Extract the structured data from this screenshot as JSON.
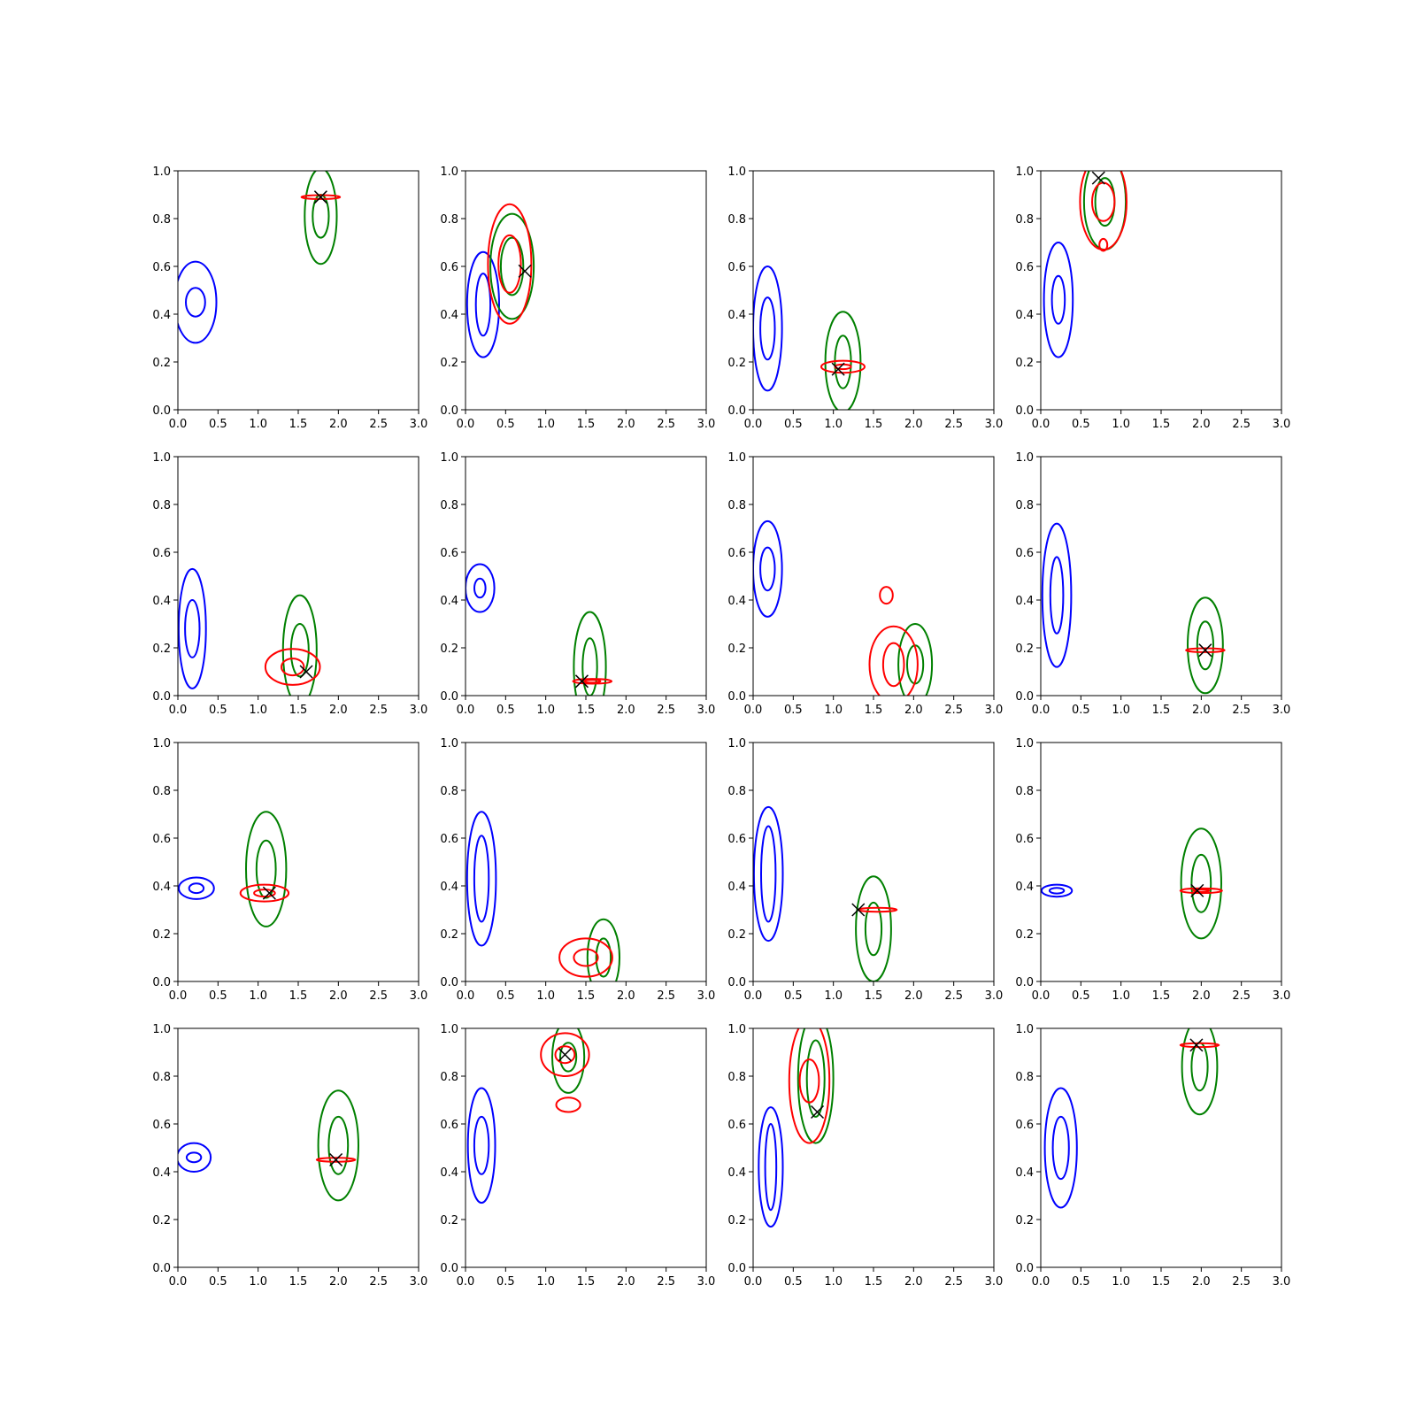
{
  "colors": {
    "blue": "#0000ff",
    "green": "#008000",
    "red": "#ff0000",
    "marker": "#000000"
  },
  "chart_data": {
    "type": "contour-grid",
    "grid": {
      "rows": 4,
      "cols": 4
    },
    "xlim": [
      0,
      3
    ],
    "ylim": [
      0,
      1
    ],
    "xticks": [
      "0.0",
      "0.5",
      "1.0",
      "1.5",
      "2.0",
      "2.5",
      "3.0"
    ],
    "yticks": [
      "0.0",
      "0.2",
      "0.4",
      "0.6",
      "0.8",
      "1.0"
    ],
    "panels": [
      {
        "marker": [
          1.78,
          0.89
        ],
        "blue": [
          {
            "cx": 0.22,
            "cy": 0.45,
            "levels": [
              [
                0.26,
                0.17
              ],
              [
                0.12,
                0.06
              ]
            ]
          }
        ],
        "green": [
          {
            "cx": 1.78,
            "cy": 0.81,
            "levels": [
              [
                0.2,
                0.2
              ],
              [
                0.1,
                0.09
              ]
            ]
          }
        ],
        "red": [
          {
            "cx": 1.78,
            "cy": 0.89,
            "levels": [
              [
                0.24,
                0.008
              ]
            ]
          }
        ]
      },
      {
        "marker": [
          0.74,
          0.58
        ],
        "blue": [
          {
            "cx": 0.22,
            "cy": 0.44,
            "levels": [
              [
                0.2,
                0.22
              ],
              [
                0.09,
                0.13
              ]
            ]
          }
        ],
        "green": [
          {
            "cx": 0.58,
            "cy": 0.6,
            "levels": [
              [
                0.27,
                0.22
              ],
              [
                0.14,
                0.12
              ]
            ]
          }
        ],
        "red": [
          {
            "cx": 0.55,
            "cy": 0.61,
            "levels": [
              [
                0.27,
                0.25
              ],
              [
                0.14,
                0.12
              ]
            ]
          }
        ]
      },
      {
        "marker": [
          1.06,
          0.17
        ],
        "blue": [
          {
            "cx": 0.18,
            "cy": 0.34,
            "levels": [
              [
                0.18,
                0.26
              ],
              [
                0.09,
                0.13
              ]
            ]
          }
        ],
        "green": [
          {
            "cx": 1.12,
            "cy": 0.2,
            "levels": [
              [
                0.22,
                0.21
              ],
              [
                0.1,
                0.11
              ]
            ]
          }
        ],
        "red": [
          {
            "cx": 1.12,
            "cy": 0.18,
            "levels": [
              [
                0.27,
                0.025
              ],
              [
                0.1,
                0.01
              ]
            ]
          }
        ]
      },
      {
        "marker": [
          0.72,
          0.97
        ],
        "blue": [
          {
            "cx": 0.22,
            "cy": 0.46,
            "levels": [
              [
                0.18,
                0.24
              ],
              [
                0.08,
                0.1
              ]
            ]
          }
        ],
        "green": [
          {
            "cx": 0.8,
            "cy": 0.87,
            "levels": [
              [
                0.26,
                0.2
              ],
              [
                0.12,
                0.1
              ]
            ]
          }
        ],
        "red": [
          {
            "cx": 0.78,
            "cy": 0.87,
            "levels": [
              [
                0.29,
                0.2
              ],
              [
                0.14,
                0.08
              ]
            ]
          },
          {
            "cx": 0.78,
            "cy": 0.69,
            "levels": [
              [
                0.05,
                0.025
              ]
            ]
          }
        ]
      },
      {
        "marker": [
          1.6,
          0.1
        ],
        "blue": [
          {
            "cx": 0.18,
            "cy": 0.28,
            "levels": [
              [
                0.17,
                0.25
              ],
              [
                0.09,
                0.12
              ]
            ]
          }
        ],
        "green": [
          {
            "cx": 1.52,
            "cy": 0.19,
            "levels": [
              [
                0.21,
                0.23
              ],
              [
                0.11,
                0.11
              ]
            ]
          }
        ],
        "red": [
          {
            "cx": 1.43,
            "cy": 0.12,
            "levels": [
              [
                0.34,
                0.075
              ],
              [
                0.14,
                0.035
              ]
            ]
          }
        ]
      },
      {
        "marker": [
          1.45,
          0.06
        ],
        "blue": [
          {
            "cx": 0.18,
            "cy": 0.45,
            "levels": [
              [
                0.18,
                0.1
              ],
              [
                0.07,
                0.04
              ]
            ]
          }
        ],
        "green": [
          {
            "cx": 1.55,
            "cy": 0.12,
            "levels": [
              [
                0.2,
                0.23
              ],
              [
                0.09,
                0.12
              ]
            ]
          }
        ],
        "red": [
          {
            "cx": 1.58,
            "cy": 0.06,
            "levels": [
              [
                0.24,
                0.01
              ],
              [
                0.1,
                0.006
              ]
            ]
          }
        ]
      },
      {
        "marker": null,
        "blue": [
          {
            "cx": 0.18,
            "cy": 0.53,
            "levels": [
              [
                0.18,
                0.2
              ],
              [
                0.09,
                0.09
              ]
            ]
          }
        ],
        "green": [
          {
            "cx": 2.02,
            "cy": 0.13,
            "levels": [
              [
                0.21,
                0.17
              ],
              [
                0.1,
                0.08
              ]
            ]
          }
        ],
        "red": [
          {
            "cx": 1.75,
            "cy": 0.13,
            "levels": [
              [
                0.3,
                0.16
              ],
              [
                0.13,
                0.09
              ]
            ]
          },
          {
            "cx": 1.66,
            "cy": 0.42,
            "levels": [
              [
                0.08,
                0.035
              ]
            ]
          }
        ]
      },
      {
        "marker": [
          2.05,
          0.19
        ],
        "blue": [
          {
            "cx": 0.2,
            "cy": 0.42,
            "levels": [
              [
                0.18,
                0.3
              ],
              [
                0.08,
                0.16
              ]
            ]
          }
        ],
        "green": [
          {
            "cx": 2.05,
            "cy": 0.21,
            "levels": [
              [
                0.22,
                0.2
              ],
              [
                0.1,
                0.1
              ]
            ]
          }
        ],
        "red": [
          {
            "cx": 2.05,
            "cy": 0.19,
            "levels": [
              [
                0.24,
                0.008
              ]
            ]
          }
        ]
      },
      {
        "marker": [
          1.14,
          0.37
        ],
        "blue": [
          {
            "cx": 0.23,
            "cy": 0.39,
            "levels": [
              [
                0.22,
                0.045
              ],
              [
                0.09,
                0.02
              ]
            ]
          }
        ],
        "green": [
          {
            "cx": 1.1,
            "cy": 0.47,
            "levels": [
              [
                0.25,
                0.24
              ],
              [
                0.12,
                0.12
              ]
            ]
          }
        ],
        "red": [
          {
            "cx": 1.08,
            "cy": 0.37,
            "levels": [
              [
                0.3,
                0.035
              ],
              [
                0.13,
                0.015
              ]
            ]
          }
        ]
      },
      {
        "marker": null,
        "blue": [
          {
            "cx": 0.2,
            "cy": 0.43,
            "levels": [
              [
                0.18,
                0.28
              ],
              [
                0.09,
                0.18
              ]
            ]
          }
        ],
        "green": [
          {
            "cx": 1.72,
            "cy": 0.1,
            "levels": [
              [
                0.2,
                0.16
              ],
              [
                0.09,
                0.08
              ]
            ]
          }
        ],
        "red": [
          {
            "cx": 1.5,
            "cy": 0.1,
            "levels": [
              [
                0.33,
                0.08
              ],
              [
                0.15,
                0.035
              ]
            ]
          }
        ]
      },
      {
        "marker": [
          1.31,
          0.3
        ],
        "blue": [
          {
            "cx": 0.19,
            "cy": 0.45,
            "levels": [
              [
                0.18,
                0.28
              ],
              [
                0.09,
                0.2
              ]
            ]
          }
        ],
        "green": [
          {
            "cx": 1.5,
            "cy": 0.22,
            "levels": [
              [
                0.22,
                0.22
              ],
              [
                0.1,
                0.11
              ]
            ]
          }
        ],
        "red": [
          {
            "cx": 1.55,
            "cy": 0.3,
            "levels": [
              [
                0.24,
                0.008
              ]
            ]
          }
        ]
      },
      {
        "marker": [
          1.95,
          0.38
        ],
        "blue": [
          {
            "cx": 0.2,
            "cy": 0.38,
            "levels": [
              [
                0.19,
                0.025
              ],
              [
                0.09,
                0.012
              ]
            ]
          }
        ],
        "green": [
          {
            "cx": 2.0,
            "cy": 0.41,
            "levels": [
              [
                0.25,
                0.23
              ],
              [
                0.12,
                0.12
              ]
            ]
          }
        ],
        "red": [
          {
            "cx": 2.0,
            "cy": 0.38,
            "levels": [
              [
                0.26,
                0.01
              ],
              [
                0.1,
                0.005
              ]
            ]
          }
        ]
      },
      {
        "marker": [
          1.97,
          0.45
        ],
        "blue": [
          {
            "cx": 0.2,
            "cy": 0.46,
            "levels": [
              [
                0.21,
                0.06
              ],
              [
                0.09,
                0.02
              ]
            ]
          }
        ],
        "green": [
          {
            "cx": 2.0,
            "cy": 0.51,
            "levels": [
              [
                0.25,
                0.23
              ],
              [
                0.12,
                0.12
              ]
            ]
          }
        ],
        "red": [
          {
            "cx": 1.97,
            "cy": 0.45,
            "levels": [
              [
                0.24,
                0.008
              ]
            ]
          }
        ]
      },
      {
        "marker": [
          1.24,
          0.89
        ],
        "blue": [
          {
            "cx": 0.2,
            "cy": 0.51,
            "levels": [
              [
                0.17,
                0.24
              ],
              [
                0.09,
                0.12
              ]
            ]
          }
        ],
        "green": [
          {
            "cx": 1.28,
            "cy": 0.88,
            "levels": [
              [
                0.2,
                0.15
              ],
              [
                0.1,
                0.06
              ]
            ]
          }
        ],
        "red": [
          {
            "cx": 1.24,
            "cy": 0.89,
            "levels": [
              [
                0.3,
                0.09
              ],
              [
                0.12,
                0.035
              ]
            ]
          },
          {
            "cx": 1.28,
            "cy": 0.68,
            "levels": [
              [
                0.15,
                0.03
              ]
            ]
          }
        ]
      },
      {
        "marker": [
          0.8,
          0.65
        ],
        "blue": [
          {
            "cx": 0.22,
            "cy": 0.42,
            "levels": [
              [
                0.15,
                0.25
              ],
              [
                0.07,
                0.18
              ]
            ]
          }
        ],
        "green": [
          {
            "cx": 0.78,
            "cy": 0.79,
            "levels": [
              [
                0.22,
                0.27
              ],
              [
                0.11,
                0.16
              ]
            ]
          }
        ],
        "red": [
          {
            "cx": 0.7,
            "cy": 0.78,
            "levels": [
              [
                0.25,
                0.26
              ],
              [
                0.12,
                0.09
              ]
            ]
          }
        ]
      },
      {
        "marker": [
          1.94,
          0.93
        ],
        "blue": [
          {
            "cx": 0.25,
            "cy": 0.5,
            "levels": [
              [
                0.2,
                0.25
              ],
              [
                0.1,
                0.13
              ]
            ]
          }
        ],
        "green": [
          {
            "cx": 1.98,
            "cy": 0.84,
            "levels": [
              [
                0.22,
                0.2
              ],
              [
                0.1,
                0.1
              ]
            ]
          }
        ],
        "red": [
          {
            "cx": 1.98,
            "cy": 0.93,
            "levels": [
              [
                0.24,
                0.008
              ]
            ]
          }
        ]
      }
    ]
  }
}
